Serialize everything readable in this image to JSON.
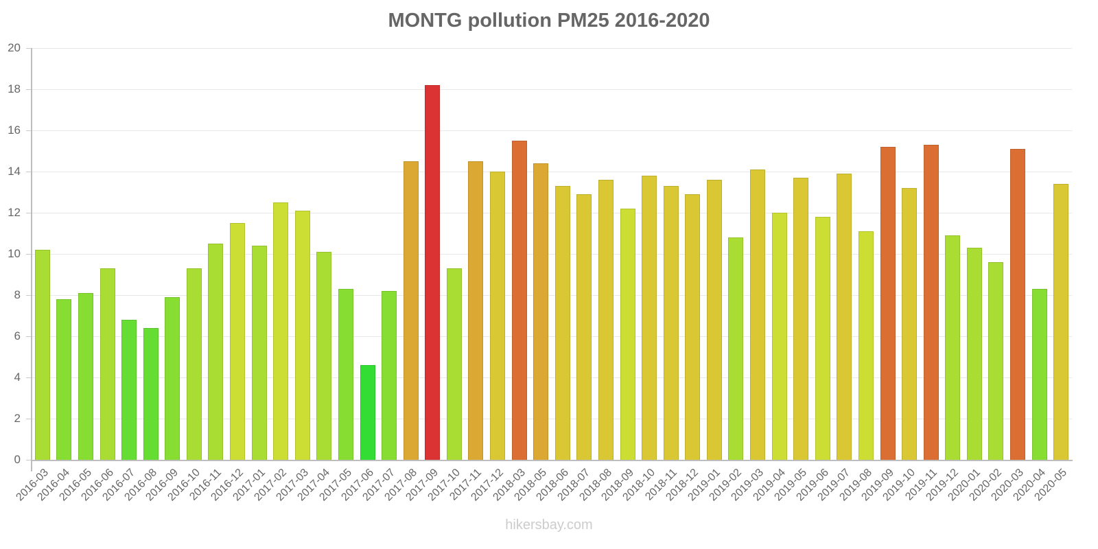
{
  "chart_data": {
    "type": "bar",
    "title": "MONTG pollution PM25 2016-2020",
    "xlabel": "",
    "ylabel": "",
    "ylim": [
      0,
      20
    ],
    "yticks": [
      0,
      2,
      4,
      6,
      8,
      10,
      12,
      14,
      16,
      18,
      20
    ],
    "grid": true,
    "legend": "none",
    "categories": [
      "2016-03",
      "2016-04",
      "2016-05",
      "2016-06",
      "2016-07",
      "2016-08",
      "2016-09",
      "2016-10",
      "2016-11",
      "2016-12",
      "2017-01",
      "2017-02",
      "2017-03",
      "2017-04",
      "2017-05",
      "2017-06",
      "2017-07",
      "2017-08",
      "2017-09",
      "2017-10",
      "2017-11",
      "2017-12",
      "2018-03",
      "2018-05",
      "2018-06",
      "2018-07",
      "2018-08",
      "2018-09",
      "2018-10",
      "2018-11",
      "2018-12",
      "2019-01",
      "2019-02",
      "2019-03",
      "2019-04",
      "2019-05",
      "2019-06",
      "2019-07",
      "2019-08",
      "2019-09",
      "2019-10",
      "2019-11",
      "2019-12",
      "2020-01",
      "2020-02",
      "2020-03",
      "2020-04",
      "2020-05"
    ],
    "values": [
      10.2,
      7.8,
      8.1,
      9.3,
      6.8,
      6.4,
      7.9,
      9.3,
      10.5,
      11.5,
      10.4,
      12.5,
      12.1,
      10.1,
      8.3,
      4.6,
      8.2,
      14.5,
      18.2,
      9.3,
      14.5,
      14.0,
      15.5,
      14.4,
      13.3,
      12.9,
      13.6,
      12.2,
      13.8,
      13.3,
      12.9,
      13.6,
      10.8,
      14.1,
      12.0,
      13.7,
      11.8,
      13.9,
      11.1,
      15.2,
      13.2,
      15.3,
      10.9,
      10.3,
      9.6,
      15.1,
      8.3,
      13.4
    ]
  },
  "footer": "hikersbay.com",
  "colors": {
    "scale": [
      {
        "max": 5,
        "color": "#33dd33"
      },
      {
        "max": 7,
        "color": "#66dd33"
      },
      {
        "max": 9,
        "color": "#88dd33"
      },
      {
        "max": 11,
        "color": "#aadd33"
      },
      {
        "max": 12.7,
        "color": "#ccdd33"
      },
      {
        "max": 14.2,
        "color": "#d9c833"
      },
      {
        "max": 15,
        "color": "#dba833"
      },
      {
        "max": 17,
        "color": "#db6e33"
      },
      {
        "max": 99,
        "color": "#db3333"
      }
    ],
    "text": "#666666",
    "footer": "#cccccc"
  }
}
